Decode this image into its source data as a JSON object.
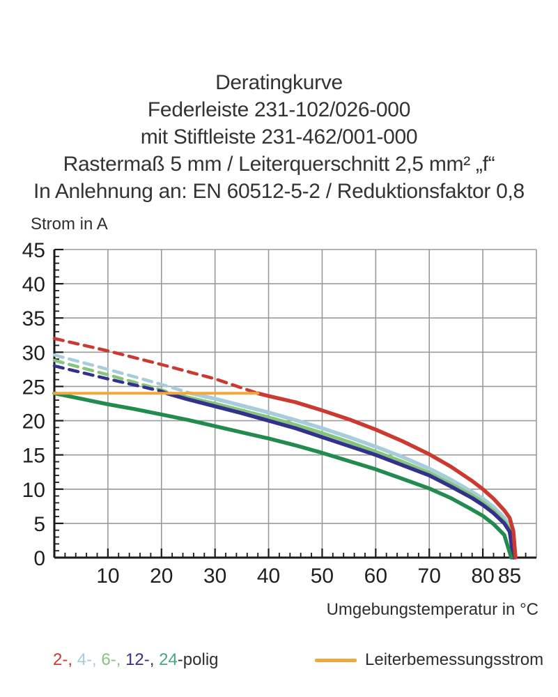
{
  "title_block": {
    "lines": [
      "Deratingkurve",
      "Federleiste 231-102/026-000",
      "mit Stiftleiste 231-462/001-000",
      "Rastermaß 5 mm / Leiterquerschnitt 2,5 mm² „f“",
      "In Anlehnung an: EN 60512-5-2 / Reduktionsfaktor 0,8"
    ]
  },
  "chart_data": {
    "type": "line",
    "title": "Deratingkurve",
    "xlabel": "Umgebungstemperatur in °C",
    "ylabel": "Strom in A",
    "xlim": [
      0,
      90
    ],
    "ylim": [
      0,
      45
    ],
    "x_major_ticks": [
      10,
      20,
      30,
      40,
      50,
      60,
      70,
      80,
      85
    ],
    "x_minor_step": 2,
    "y_major_ticks": [
      0,
      5,
      10,
      15,
      20,
      25,
      30,
      35,
      40,
      45
    ],
    "y_minor_step": 1,
    "grid": true,
    "x_gridlines": [
      10,
      20,
      30,
      40,
      50,
      60,
      70,
      80,
      90
    ],
    "y_gridlines": [
      5,
      10,
      15,
      20,
      25,
      30,
      35,
      40,
      45
    ],
    "grid_color": "#9b9b9b",
    "axis_color": "#1a1a1a",
    "tick_label_color": "#1f1f1f",
    "series": [
      {
        "name": "2-polig-dashed",
        "color": "#cb3a30",
        "style": "dashed",
        "width": 4.5,
        "points": [
          [
            0,
            32
          ],
          [
            10,
            30.2
          ],
          [
            20,
            28.2
          ],
          [
            30,
            26.1
          ],
          [
            38,
            24
          ]
        ]
      },
      {
        "name": "4-polig-dashed",
        "color": "#a6cdd9",
        "style": "dashed",
        "width": 4.5,
        "points": [
          [
            0,
            29.6
          ],
          [
            10,
            27.5
          ],
          [
            20,
            25.3
          ],
          [
            25.5,
            24
          ]
        ]
      },
      {
        "name": "6-polig-dashed",
        "color": "#84c57a",
        "style": "dashed",
        "width": 4.5,
        "points": [
          [
            0,
            28.8
          ],
          [
            10,
            26.7
          ],
          [
            20,
            24.5
          ],
          [
            21.8,
            24
          ]
        ]
      },
      {
        "name": "12-polig-dashed",
        "color": "#34318c",
        "style": "dashed",
        "width": 4.5,
        "points": [
          [
            0,
            28
          ],
          [
            10,
            26.1
          ],
          [
            20,
            24.3
          ],
          [
            21,
            24
          ]
        ]
      },
      {
        "name": "4-polig",
        "color": "#a6cdd9",
        "style": "solid",
        "width": 5.5,
        "points": [
          [
            25.5,
            24
          ],
          [
            30,
            23.2
          ],
          [
            35,
            22.2
          ],
          [
            40,
            21.2
          ],
          [
            45,
            20.1
          ],
          [
            50,
            18.9
          ],
          [
            55,
            17.6
          ],
          [
            60,
            16.2
          ],
          [
            65,
            14.7
          ],
          [
            70,
            13
          ],
          [
            74,
            11.4
          ],
          [
            78,
            9.6
          ],
          [
            80,
            8.6
          ],
          [
            82,
            7.4
          ],
          [
            84,
            5.8
          ],
          [
            85,
            4.6
          ],
          [
            85.6,
            3
          ],
          [
            86,
            0
          ]
        ]
      },
      {
        "name": "6-polig",
        "color": "#84c57a",
        "style": "solid",
        "width": 5,
        "points": [
          [
            21.8,
            24
          ],
          [
            25,
            23.4
          ],
          [
            30,
            22.5
          ],
          [
            35,
            21.5
          ],
          [
            40,
            20.5
          ],
          [
            45,
            19.4
          ],
          [
            50,
            18.2
          ],
          [
            55,
            16.9
          ],
          [
            60,
            15.5
          ],
          [
            65,
            14
          ],
          [
            70,
            12.4
          ],
          [
            74,
            10.8
          ],
          [
            78,
            9.1
          ],
          [
            80,
            8.1
          ],
          [
            82,
            6.9
          ],
          [
            84,
            5.3
          ],
          [
            85,
            4.2
          ],
          [
            85.8,
            0
          ]
        ]
      },
      {
        "name": "12-polig",
        "color": "#34318c",
        "style": "solid",
        "width": 5.5,
        "points": [
          [
            21,
            24
          ],
          [
            25,
            23.1
          ],
          [
            30,
            22.1
          ],
          [
            35,
            21.1
          ],
          [
            40,
            20
          ],
          [
            45,
            18.9
          ],
          [
            50,
            17.6
          ],
          [
            55,
            16.3
          ],
          [
            60,
            15
          ],
          [
            65,
            13.5
          ],
          [
            70,
            12
          ],
          [
            74,
            10.4
          ],
          [
            78,
            8.7
          ],
          [
            80,
            7.7
          ],
          [
            82,
            6.5
          ],
          [
            84,
            5
          ],
          [
            85,
            3.8
          ],
          [
            85.7,
            0
          ]
        ]
      },
      {
        "name": "2-polig",
        "color": "#cb3a30",
        "style": "solid",
        "width": 5.5,
        "points": [
          [
            38,
            24
          ],
          [
            40,
            23.6
          ],
          [
            45,
            22.7
          ],
          [
            50,
            21.5
          ],
          [
            55,
            20.2
          ],
          [
            60,
            18.7
          ],
          [
            65,
            17
          ],
          [
            70,
            15.1
          ],
          [
            74,
            13.3
          ],
          [
            78,
            11.2
          ],
          [
            80,
            10
          ],
          [
            82,
            8.6
          ],
          [
            84,
            6.9
          ],
          [
            85,
            5.8
          ],
          [
            85.7,
            3.9
          ],
          [
            86.1,
            0
          ]
        ]
      },
      {
        "name": "24-polig",
        "color": "#228b4e",
        "style": "solid",
        "width": 5.5,
        "points": [
          [
            0,
            24
          ],
          [
            5,
            23.2
          ],
          [
            10,
            22.4
          ],
          [
            15,
            21.7
          ],
          [
            20,
            20.9
          ],
          [
            25,
            20.1
          ],
          [
            30,
            19.2
          ],
          [
            35,
            18.3
          ],
          [
            40,
            17.4
          ],
          [
            45,
            16.4
          ],
          [
            50,
            15.3
          ],
          [
            55,
            14.1
          ],
          [
            60,
            12.9
          ],
          [
            65,
            11.5
          ],
          [
            70,
            10.1
          ],
          [
            74,
            8.7
          ],
          [
            78,
            7
          ],
          [
            80,
            6.1
          ],
          [
            82,
            4.9
          ],
          [
            84,
            3.3
          ],
          [
            85.3,
            0
          ]
        ]
      },
      {
        "name": "leiterbemessungsstrom",
        "color": "#f2a73e",
        "style": "solid",
        "width": 4,
        "points": [
          [
            0,
            24
          ],
          [
            38,
            24
          ]
        ]
      }
    ]
  },
  "legend": {
    "poles": [
      {
        "label": "2-, ",
        "color": "#cb3a30"
      },
      {
        "label": "4-, ",
        "color": "#a6cdd9"
      },
      {
        "label": "6-, ",
        "color": "#84c57a"
      },
      {
        "label": "12-, ",
        "color": "#34318c"
      },
      {
        "label": "24",
        "color": "#46a87c"
      }
    ],
    "poles_suffix": "-polig",
    "rated_current_label": "Leiterbemessungsstrom",
    "rated_current_color": "#f2a73e"
  }
}
